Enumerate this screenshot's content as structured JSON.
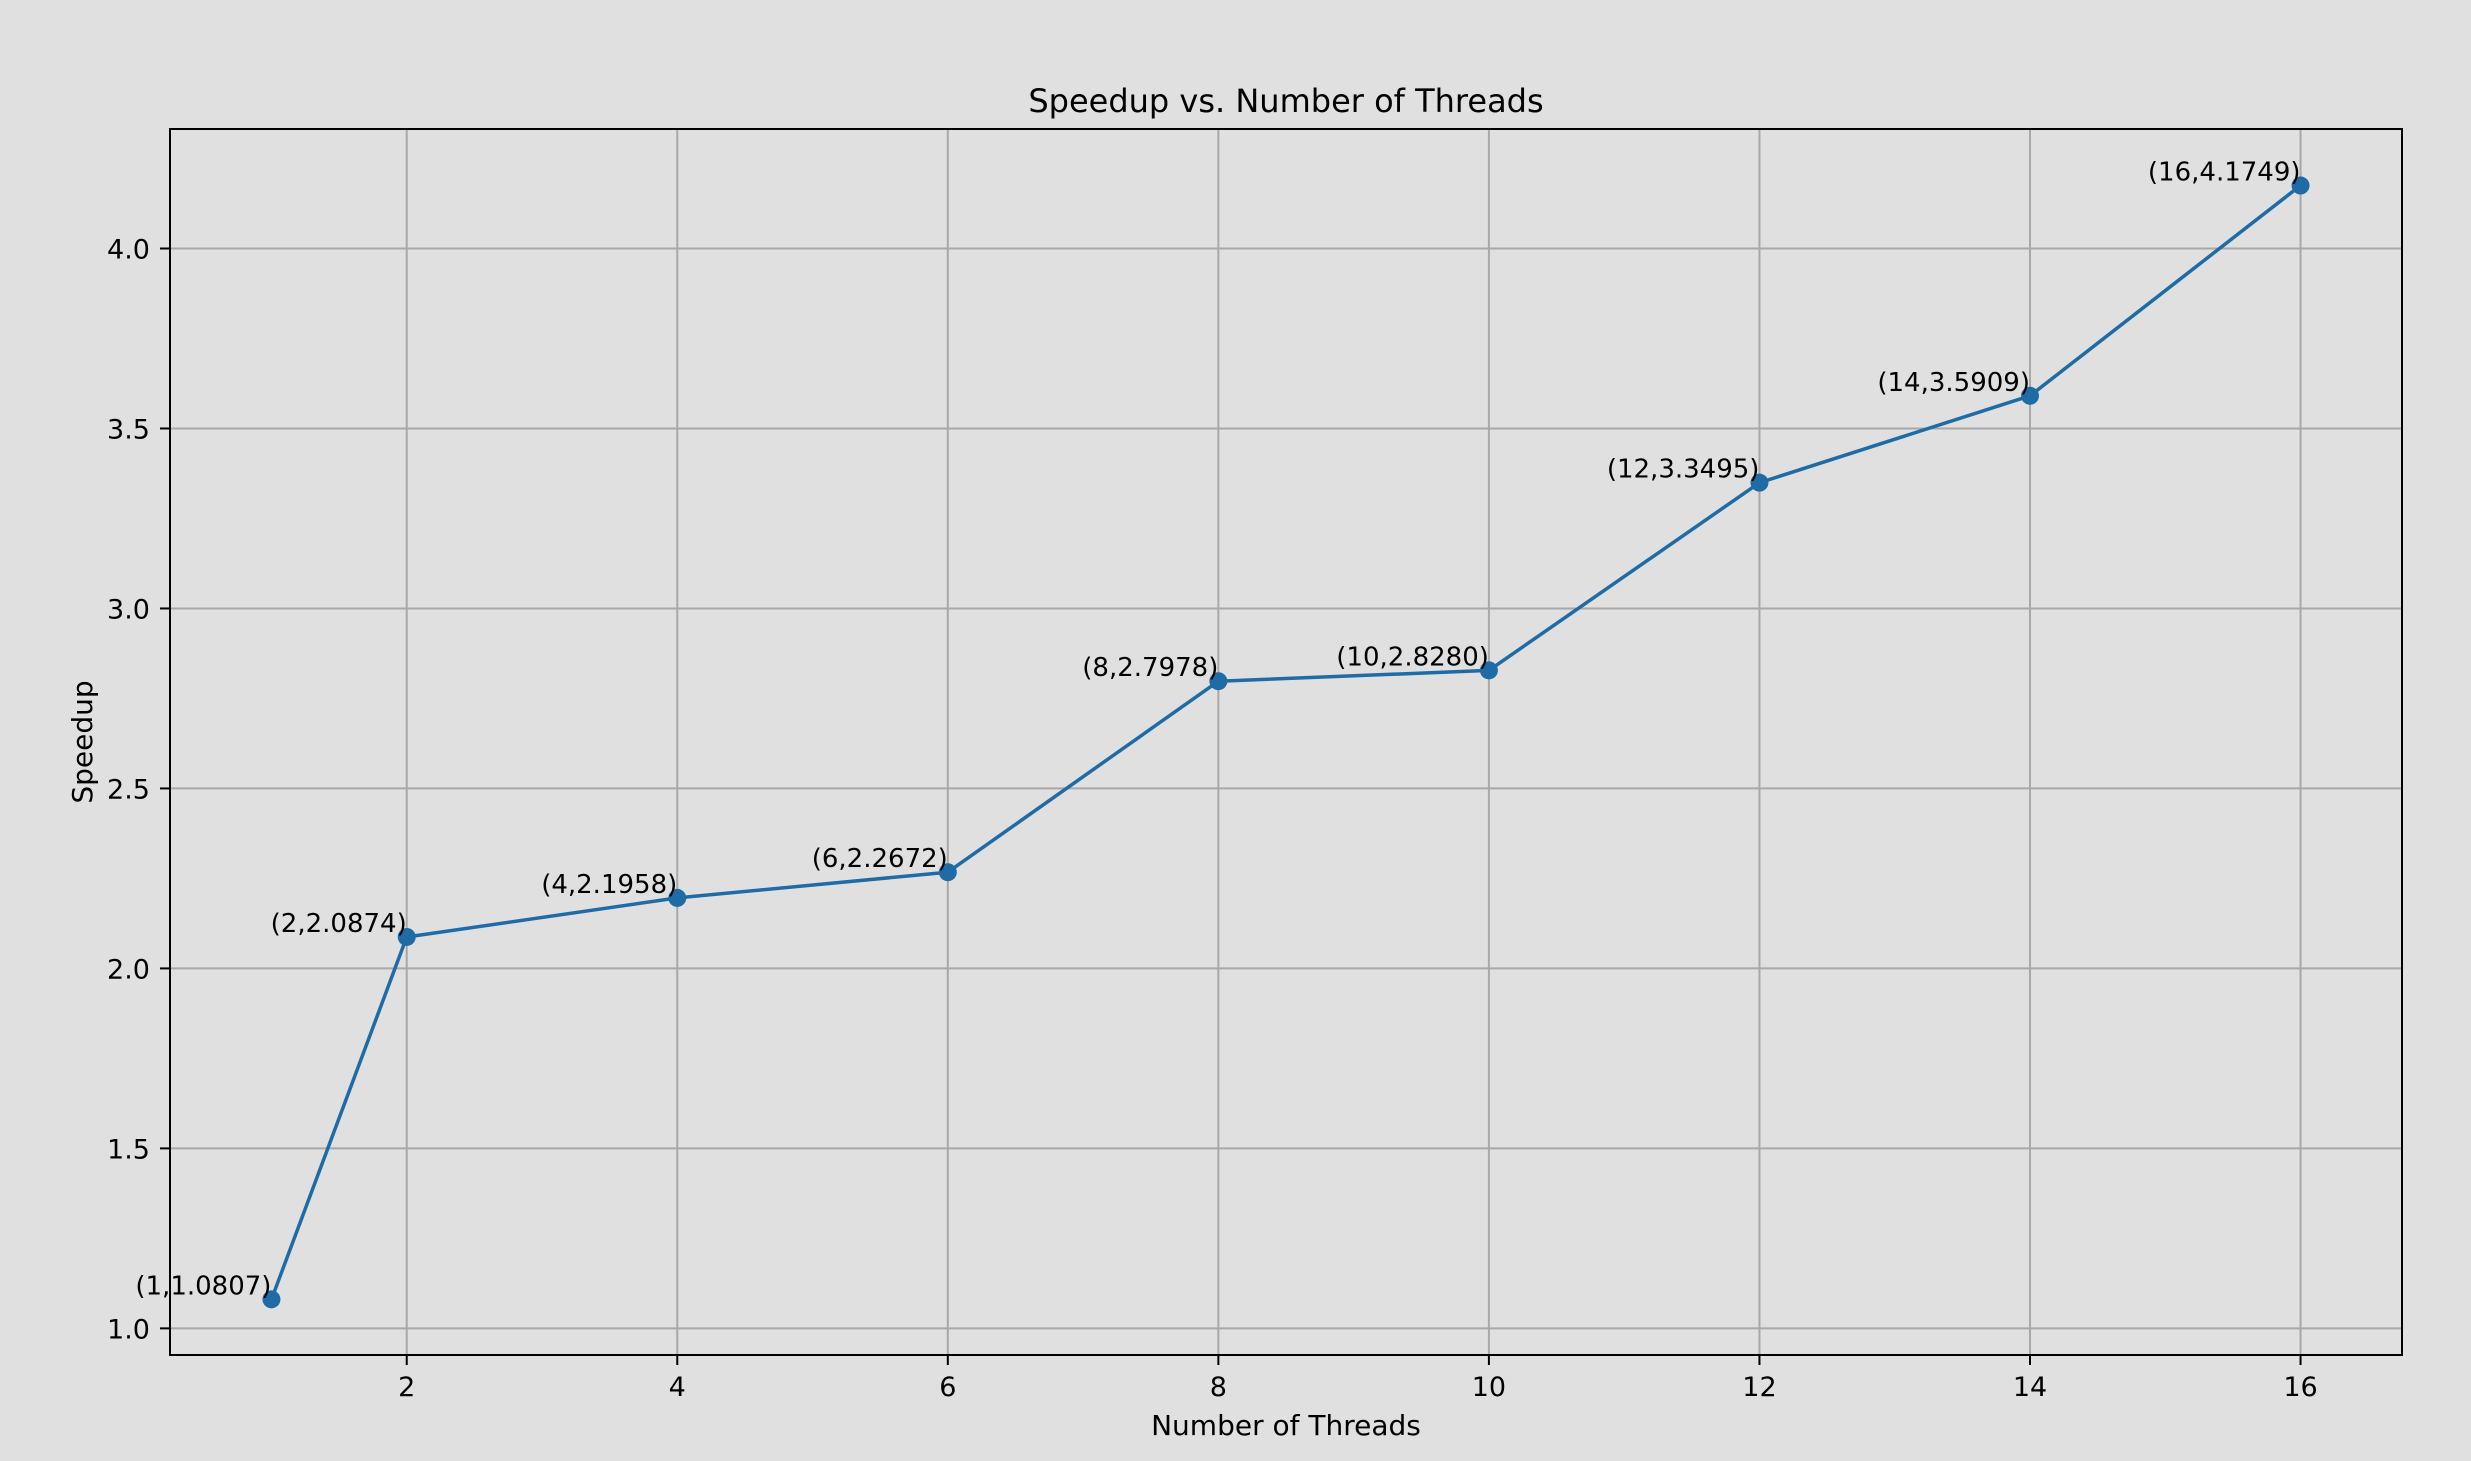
{
  "chart_data": {
    "type": "line",
    "title": "Speedup vs. Number of Threads",
    "xlabel": "Number of Threads",
    "ylabel": "Speedup",
    "xlim": [
      0.25,
      16.75
    ],
    "ylim": [
      0.926,
      4.332
    ],
    "xticks": [
      2,
      4,
      6,
      8,
      10,
      12,
      14,
      16
    ],
    "xtick_labels": [
      "2",
      "4",
      "6",
      "8",
      "10",
      "12",
      "14",
      "16"
    ],
    "yticks": [
      1.0,
      1.5,
      2.0,
      2.5,
      3.0,
      3.5,
      4.0
    ],
    "ytick_labels": [
      "1.0",
      "1.5",
      "2.0",
      "2.5",
      "3.0",
      "3.5",
      "4.0"
    ],
    "grid": true,
    "series": [
      {
        "x": [
          1,
          2,
          4,
          6,
          8,
          10,
          12,
          14,
          16
        ],
        "y": [
          1.0807,
          2.0874,
          2.1958,
          2.2672,
          2.7978,
          2.828,
          3.3495,
          3.5909,
          4.1749
        ],
        "labels": [
          "(1,1.0807)",
          "(2,2.0874)",
          "(4,2.1958)",
          "(6,2.2672)",
          "(8,2.7978)",
          "(10,2.8280)",
          "(12,3.3495)",
          "(14,3.5909)",
          "(16,4.1749)"
        ],
        "color": "#1f6ba5",
        "marker": "circle"
      }
    ],
    "colors": {
      "background": "#e0e0e0",
      "grid": "#a8a8a8",
      "axes": "#000000"
    }
  }
}
